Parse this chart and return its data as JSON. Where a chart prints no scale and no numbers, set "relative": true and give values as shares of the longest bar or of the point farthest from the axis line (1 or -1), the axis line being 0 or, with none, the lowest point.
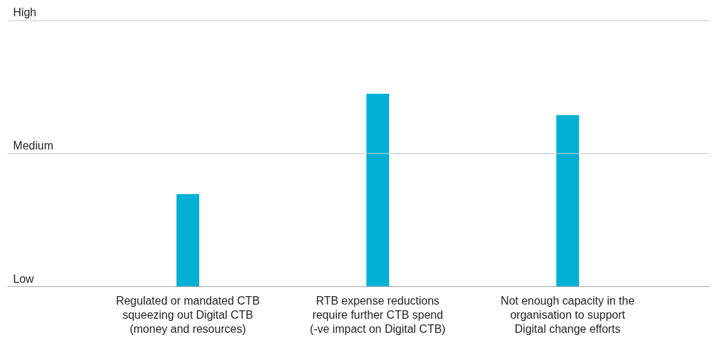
{
  "chart_data": {
    "type": "bar",
    "categories": [
      "Regulated or mandated CTB squeezing out Digital CTB (money and resources)",
      "RTB expense reductions require further CTB spend (-ve impact on Digital CTB)",
      "Not enough capacity in the organisation to support Digital change efforts"
    ],
    "values": [
      0.48,
      1,
      0.89
    ],
    "color": "#00b0d4",
    "relative": true,
    "annotations": [
      "Low"
    ],
    "ref_lines": [
      {
        "axis": "y",
        "value": 0.69,
        "label": "Medium",
        "color": "#cccccc"
      },
      {
        "axis": "y",
        "value": 1.38,
        "label": "High",
        "color": "#cccccc"
      }
    ]
  }
}
